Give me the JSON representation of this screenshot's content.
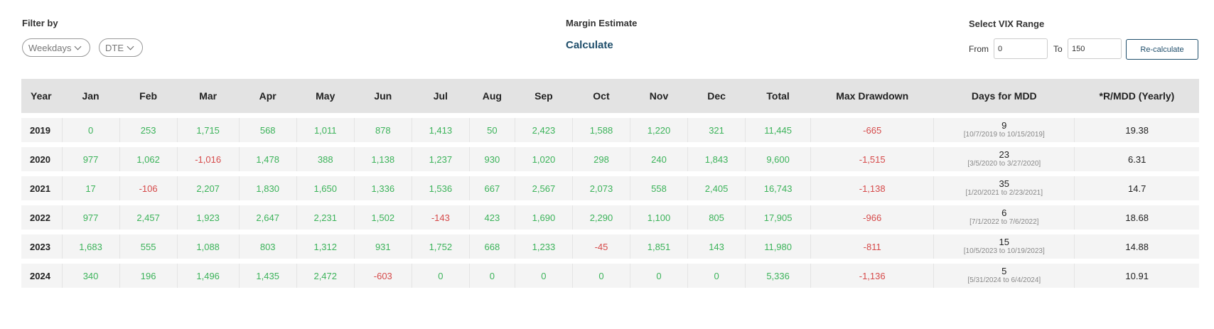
{
  "filter": {
    "label": "Filter by",
    "weekdays": "Weekdays",
    "dte": "DTE"
  },
  "margin": {
    "label": "Margin Estimate",
    "calculate": "Calculate"
  },
  "vix": {
    "label": "Select VIX Range",
    "from_label": "From",
    "from_value": "0",
    "to_label": "To",
    "to_value": "150",
    "recalc": "Re-calculate"
  },
  "colors": {
    "positive": "#3cb35a",
    "negative": "#d64a4a",
    "accent": "#1f4e6b"
  },
  "table": {
    "headers": [
      "Year",
      "Jan",
      "Feb",
      "Mar",
      "Apr",
      "May",
      "Jun",
      "Jul",
      "Aug",
      "Sep",
      "Oct",
      "Nov",
      "Dec",
      "Total",
      "Max Drawdown",
      "Days for MDD",
      "*R/MDD (Yearly)"
    ],
    "rows": [
      {
        "year": "2019",
        "months": [
          "0",
          "253",
          "1,715",
          "568",
          "1,011",
          "878",
          "1,413",
          "50",
          "2,423",
          "1,588",
          "1,220",
          "321"
        ],
        "total": "11,445",
        "mdd": "-665",
        "days": "9",
        "range": "[10/7/2019 to 10/15/2019]",
        "ratio": "19.38"
      },
      {
        "year": "2020",
        "months": [
          "977",
          "1,062",
          "-1,016",
          "1,478",
          "388",
          "1,138",
          "1,237",
          "930",
          "1,020",
          "298",
          "240",
          "1,843"
        ],
        "total": "9,600",
        "mdd": "-1,515",
        "days": "23",
        "range": "[3/5/2020 to 3/27/2020]",
        "ratio": "6.31"
      },
      {
        "year": "2021",
        "months": [
          "17",
          "-106",
          "2,207",
          "1,830",
          "1,650",
          "1,336",
          "1,536",
          "667",
          "2,567",
          "2,073",
          "558",
          "2,405"
        ],
        "total": "16,743",
        "mdd": "-1,138",
        "days": "35",
        "range": "[1/20/2021 to 2/23/2021]",
        "ratio": "14.7"
      },
      {
        "year": "2022",
        "months": [
          "977",
          "2,457",
          "1,923",
          "2,647",
          "2,231",
          "1,502",
          "-143",
          "423",
          "1,690",
          "2,290",
          "1,100",
          "805"
        ],
        "total": "17,905",
        "mdd": "-966",
        "days": "6",
        "range": "[7/1/2022 to 7/6/2022]",
        "ratio": "18.68"
      },
      {
        "year": "2023",
        "months": [
          "1,683",
          "555",
          "1,088",
          "803",
          "1,312",
          "931",
          "1,752",
          "668",
          "1,233",
          "-45",
          "1,851",
          "143"
        ],
        "total": "11,980",
        "mdd": "-811",
        "days": "15",
        "range": "[10/5/2023 to 10/19/2023]",
        "ratio": "14.88"
      },
      {
        "year": "2024",
        "months": [
          "340",
          "196",
          "1,496",
          "1,435",
          "2,472",
          "-603",
          "0",
          "0",
          "0",
          "0",
          "0",
          "0"
        ],
        "total": "5,336",
        "mdd": "-1,136",
        "days": "5",
        "range": "[5/31/2024 to 6/4/2024]",
        "ratio": "10.91"
      }
    ]
  }
}
